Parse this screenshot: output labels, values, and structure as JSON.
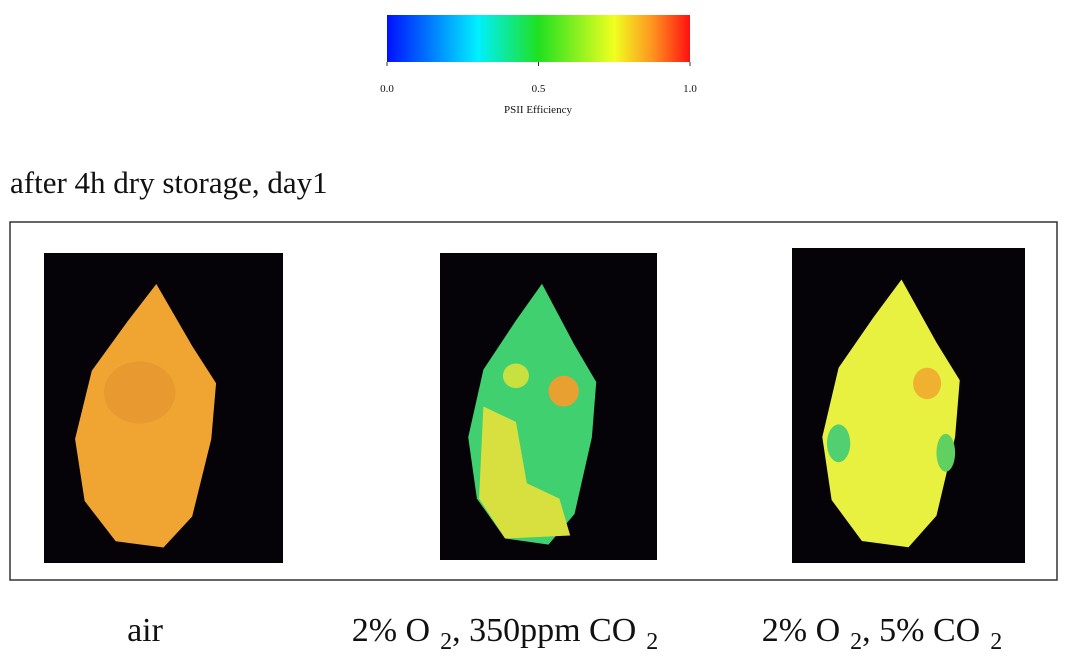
{
  "colorbar": {
    "label": "PSII Efficiency",
    "lim": [
      0,
      1
    ],
    "ticks": [
      {
        "value": 0,
        "label": "0.0"
      },
      {
        "value": 0.5,
        "label": "0.5"
      },
      {
        "value": 1,
        "label": "1.0"
      }
    ]
  },
  "title": "after 4h dry storage, day1",
  "captions": [
    [
      {
        "text": "air"
      }
    ],
    [
      {
        "text": "2% O"
      },
      {
        "sub": "2"
      },
      {
        "text": ", 350ppm CO"
      },
      {
        "sub": "2"
      }
    ],
    [
      {
        "text": "2% O"
      },
      {
        "sub": "2"
      },
      {
        "text": ", 5% CO"
      },
      {
        "sub": "2"
      }
    ]
  ]
}
